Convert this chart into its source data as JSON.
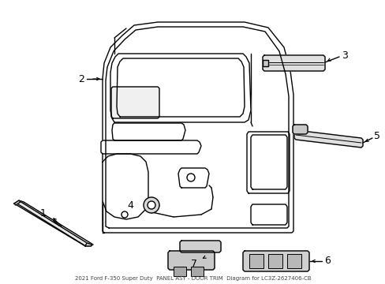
{
  "title": "2021 Ford F-350 Super Duty  PANEL ASY - DOOR TRIM  Diagram for LC3Z-2627406-CB",
  "bg_color": "#ffffff",
  "line_color": "#000000",
  "line_width": 1.0,
  "figsize": [
    4.89,
    3.6
  ],
  "dpi": 100
}
